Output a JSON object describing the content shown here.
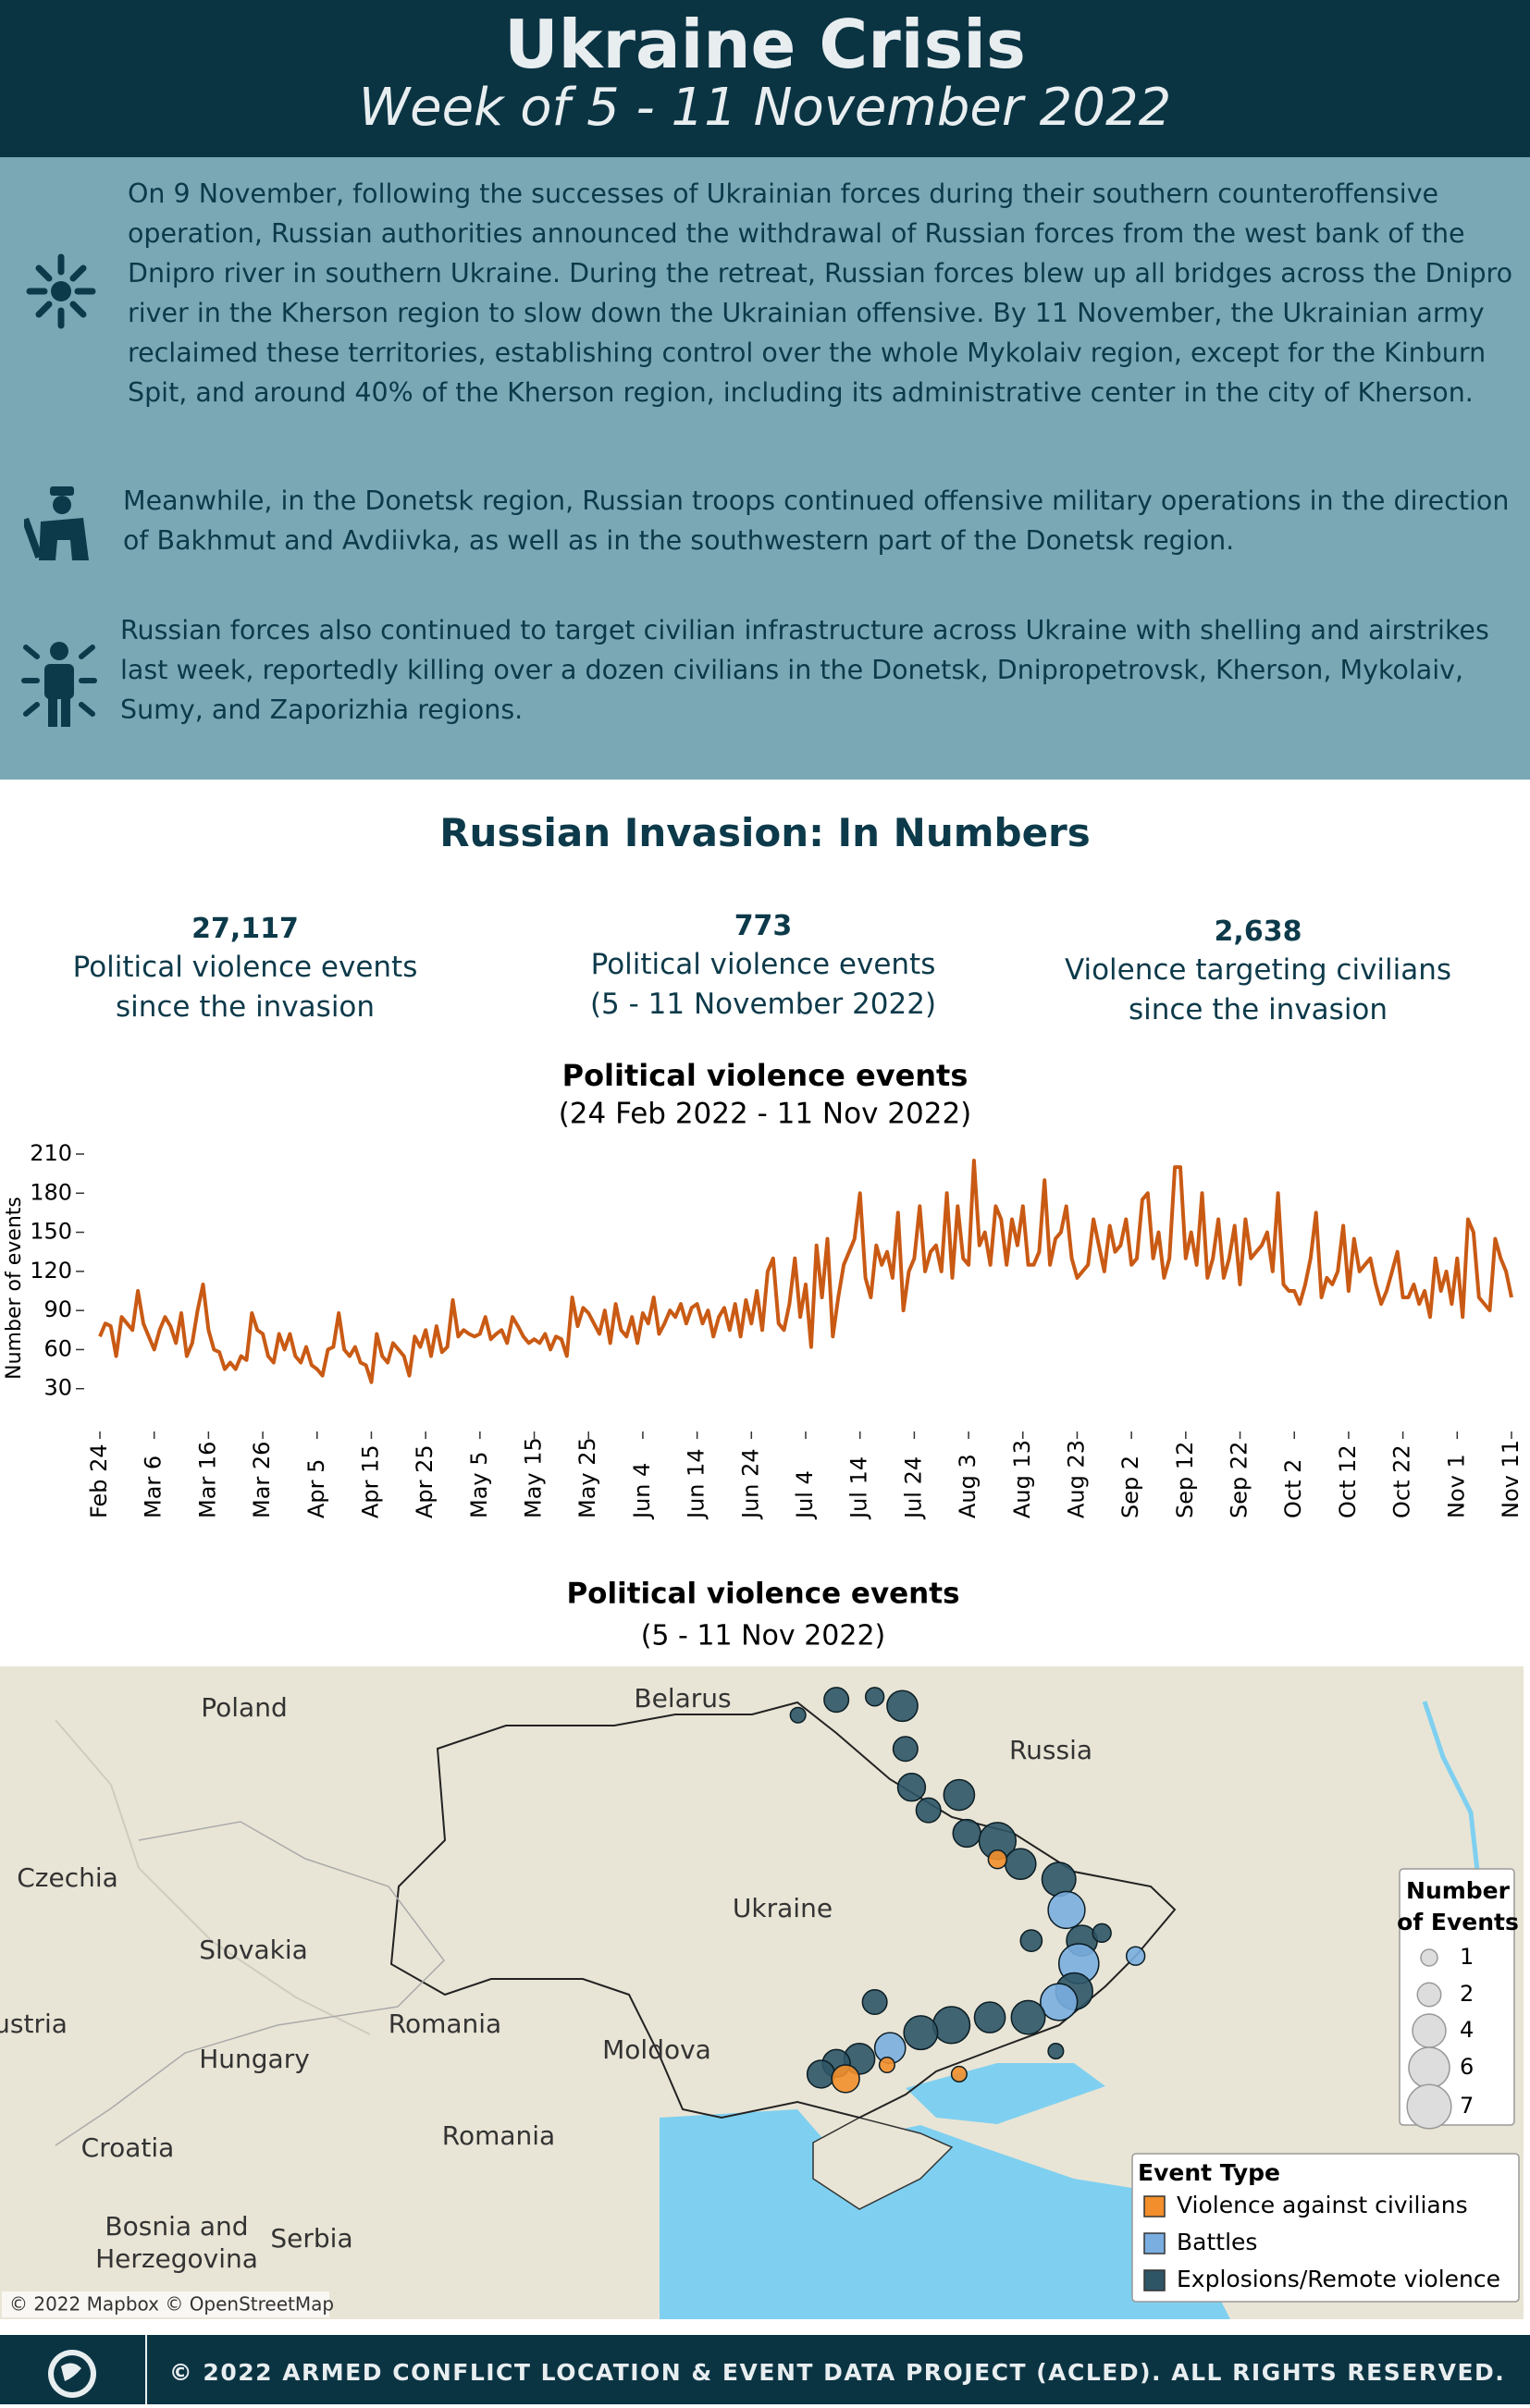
{
  "header": {
    "title": "Ukraine Crisis",
    "subtitle": "Week of 5 - 11 November 2022"
  },
  "paragraphs": [
    "On 9 November, following the successes of Ukrainian forces during their southern counteroffensive operation, Russian authorities announced the withdrawal of Russian forces from the west bank of the Dnipro river in southern Ukraine. During the retreat, Russian forces blew up all bridges across the Dnipro river in the Kherson region to slow down the Ukrainian offensive. By 11 November, the Ukrainian army reclaimed these territories, establishing control over the whole Mykolaiv region, except for the Kinburn Spit, and around 40% of the Kherson region, including its administrative center in the city of Kherson.",
    "Meanwhile, in the Donetsk region, Russian troops continued offensive military operations in the direction of Bakhmut and Avdiivka, as well as in the southwestern part of the Donetsk region.",
    "Russian forces also continued to target civilian infrastructure across Ukraine with shelling and airstrikes last week, reportedly killing over a dozen civilians in the Donetsk, Dnipropetrovsk, Kherson, Mykolaiv, Sumy, and Zaporizhia regions."
  ],
  "numbers": {
    "title": "Russian Invasion: In Numbers",
    "stats": [
      {
        "value": "27,117",
        "lines": [
          "Political violence events",
          "since the invasion"
        ]
      },
      {
        "value": "773",
        "lines": [
          "Political violence events",
          "(5 - 11 November 2022)"
        ]
      },
      {
        "value": "2,638",
        "lines": [
          "Violence targeting civilians",
          "since the invasion"
        ]
      }
    ]
  },
  "chart_data": [
    {
      "type": "line",
      "title": "Political violence events",
      "subtitle": "(24 Feb 2022 - 11 Nov 2022)",
      "y_label": "Number of events",
      "color": "#c95a14",
      "x": [
        "Feb 24",
        "Feb 25",
        "Feb 26",
        "Feb 27",
        "Feb 28",
        "Mar 1",
        "Mar 2",
        "Mar 3",
        "Mar 4",
        "Mar 5",
        "Mar 6",
        "Mar 7",
        "Mar 8",
        "Mar 9",
        "Mar 10",
        "Mar 11",
        "Mar 12",
        "Mar 13",
        "Mar 14",
        "Mar 15",
        "Mar 16",
        "Mar 17",
        "Mar 18",
        "Mar 19",
        "Mar 20",
        "Mar 21",
        "Mar 22",
        "Mar 23",
        "Mar 24",
        "Mar 25",
        "Mar 26",
        "Mar 27",
        "Mar 28",
        "Mar 29",
        "Mar 30",
        "Mar 31",
        "Apr 1",
        "Apr 2",
        "Apr 3",
        "Apr 4",
        "Apr 5",
        "Apr 6",
        "Apr 7",
        "Apr 8",
        "Apr 9",
        "Apr 10",
        "Apr 11",
        "Apr 12",
        "Apr 13",
        "Apr 14",
        "Apr 15",
        "Apr 16",
        "Apr 17",
        "Apr 18",
        "Apr 19",
        "Apr 20",
        "Apr 21",
        "Apr 22",
        "Apr 23",
        "Apr 24",
        "Apr 25",
        "Apr 26",
        "Apr 27",
        "Apr 28",
        "Apr 29",
        "Apr 30",
        "May 1",
        "May 2",
        "May 3",
        "May 4",
        "May 5",
        "May 6",
        "May 7",
        "May 8",
        "May 9",
        "May 10",
        "May 11",
        "May 12",
        "May 13",
        "May 14",
        "May 15",
        "May 16",
        "May 17",
        "May 18",
        "May 19",
        "May 20",
        "May 21",
        "May 22",
        "May 23",
        "May 24",
        "May 25",
        "May 26",
        "May 27",
        "May 28",
        "May 29",
        "May 30",
        "May 31",
        "Jun 1",
        "Jun 2",
        "Jun 3",
        "Jun 4",
        "Jun 5",
        "Jun 6",
        "Jun 7",
        "Jun 8",
        "Jun 9",
        "Jun 10",
        "Jun 11",
        "Jun 12",
        "Jun 13",
        "Jun 14",
        "Jun 15",
        "Jun 16",
        "Jun 17",
        "Jun 18",
        "Jun 19",
        "Jun 20",
        "Jun 21",
        "Jun 22",
        "Jun 23",
        "Jun 24",
        "Jun 25",
        "Jun 26",
        "Jun 27",
        "Jun 28",
        "Jun 29",
        "Jun 30",
        "Jul 1",
        "Jul 2",
        "Jul 3",
        "Jul 4",
        "Jul 5",
        "Jul 6",
        "Jul 7",
        "Jul 8",
        "Jul 9",
        "Jul 10",
        "Jul 11",
        "Jul 12",
        "Jul 13",
        "Jul 14",
        "Jul 15",
        "Jul 16",
        "Jul 17",
        "Jul 18",
        "Jul 19",
        "Jul 20",
        "Jul 21",
        "Jul 22",
        "Jul 23",
        "Jul 24",
        "Jul 25",
        "Jul 26",
        "Jul 27",
        "Jul 28",
        "Jul 29",
        "Jul 30",
        "Jul 31",
        "Aug 1",
        "Aug 2",
        "Aug 3",
        "Aug 4",
        "Aug 5",
        "Aug 6",
        "Aug 7",
        "Aug 8",
        "Aug 9",
        "Aug 10",
        "Aug 11",
        "Aug 12",
        "Aug 13",
        "Aug 14",
        "Aug 15",
        "Aug 16",
        "Aug 17",
        "Aug 18",
        "Aug 19",
        "Aug 20",
        "Aug 21",
        "Aug 22",
        "Aug 23",
        "Aug 24",
        "Aug 25",
        "Aug 26",
        "Aug 27",
        "Aug 28",
        "Aug 29",
        "Aug 30",
        "Aug 31",
        "Sep 1",
        "Sep 2",
        "Sep 3",
        "Sep 4",
        "Sep 5",
        "Sep 6",
        "Sep 7",
        "Sep 8",
        "Sep 9",
        "Sep 10",
        "Sep 11",
        "Sep 12",
        "Sep 13",
        "Sep 14",
        "Sep 15",
        "Sep 16",
        "Sep 17",
        "Sep 18",
        "Sep 19",
        "Sep 20",
        "Sep 21",
        "Sep 22",
        "Sep 23",
        "Sep 24",
        "Sep 25",
        "Sep 26",
        "Sep 27",
        "Sep 28",
        "Sep 29",
        "Sep 30",
        "Oct 1",
        "Oct 2",
        "Oct 3",
        "Oct 4",
        "Oct 5",
        "Oct 6",
        "Oct 7",
        "Oct 8",
        "Oct 9",
        "Oct 10",
        "Oct 11",
        "Oct 12",
        "Oct 13",
        "Oct 14",
        "Oct 15",
        "Oct 16",
        "Oct 17",
        "Oct 18",
        "Oct 19",
        "Oct 20",
        "Oct 21",
        "Oct 22",
        "Oct 23",
        "Oct 24",
        "Oct 25",
        "Oct 26",
        "Oct 27",
        "Oct 28",
        "Oct 29",
        "Oct 30",
        "Oct 31",
        "Nov 1",
        "Nov 2",
        "Nov 3",
        "Nov 4",
        "Nov 5",
        "Nov 6",
        "Nov 7",
        "Nov 8",
        "Nov 9",
        "Nov 10",
        "Nov 11"
      ],
      "values": [
        70,
        80,
        78,
        55,
        85,
        80,
        75,
        105,
        80,
        70,
        60,
        75,
        85,
        78,
        65,
        88,
        55,
        65,
        90,
        110,
        75,
        60,
        58,
        45,
        50,
        45,
        55,
        52,
        88,
        75,
        72,
        55,
        50,
        72,
        60,
        72,
        55,
        50,
        62,
        48,
        45,
        40,
        60,
        62,
        88,
        60,
        55,
        62,
        50,
        48,
        35,
        72,
        55,
        50,
        65,
        60,
        55,
        40,
        70,
        62,
        75,
        55,
        78,
        58,
        62,
        98,
        70,
        75,
        72,
        70,
        72,
        85,
        68,
        72,
        75,
        65,
        85,
        78,
        70,
        65,
        68,
        65,
        72,
        60,
        70,
        68,
        55,
        100,
        78,
        92,
        88,
        80,
        72,
        90,
        65,
        95,
        75,
        70,
        85,
        65,
        88,
        80,
        100,
        72,
        80,
        90,
        85,
        95,
        80,
        92,
        95,
        80,
        90,
        70,
        85,
        92,
        75,
        95,
        70,
        98,
        80,
        105,
        75,
        120,
        130,
        80,
        75,
        95,
        130,
        85,
        110,
        62,
        140,
        100,
        145,
        70,
        100,
        125,
        135,
        145,
        180,
        115,
        100,
        140,
        125,
        135,
        115,
        165,
        90,
        120,
        130,
        170,
        120,
        135,
        140,
        120,
        180,
        115,
        170,
        130,
        125,
        205,
        140,
        150,
        125,
        170,
        160,
        125,
        160,
        140,
        170,
        125,
        125,
        135,
        190,
        125,
        145,
        150,
        170,
        130,
        115,
        120,
        125,
        160,
        140,
        120,
        155,
        135,
        140,
        160,
        125,
        130,
        175,
        180,
        130,
        150,
        115,
        130,
        200,
        200,
        130,
        150,
        125,
        180,
        115,
        130,
        160,
        115,
        130,
        155,
        110,
        160,
        130,
        135,
        140,
        150,
        120,
        180,
        110,
        105,
        105,
        95,
        110,
        130,
        165,
        100,
        115,
        110,
        120,
        155,
        105,
        145,
        120,
        125,
        130,
        110,
        95,
        105,
        120,
        135,
        100,
        100,
        110,
        95,
        105,
        85,
        130,
        105,
        120,
        95,
        130,
        85,
        160,
        150,
        100,
        95,
        90,
        145,
        130,
        120,
        100
      ],
      "xticks": [
        "Feb 24",
        "Mar 6",
        "Mar 16",
        "Mar 26",
        "Apr 5",
        "Apr 15",
        "Apr 25",
        "May 5",
        "May 15",
        "May 25",
        "Jun 4",
        "Jun 14",
        "Jun 24",
        "Jul 4",
        "Jul 14",
        "Jul 24",
        "Aug 3",
        "Aug 13",
        "Aug 23",
        "Sep 2",
        "Sep 12",
        "Sep 22",
        "Oct 2",
        "Oct 12",
        "Oct 22",
        "Nov 1",
        "Nov 11"
      ],
      "ylim": [
        0,
        210
      ],
      "yticks": [
        30,
        60,
        90,
        120,
        150,
        180,
        210
      ]
    },
    {
      "type": "bubble_map",
      "title": "Political violence events",
      "subtitle": "(5 - 11 Nov 2022)",
      "map_labels": [
        "Poland",
        "Belarus",
        "Russia",
        "Czechia",
        "Ukraine",
        "Slovakia",
        "ustria",
        "Romania",
        "Moldova",
        "Hungary",
        "Romania",
        "Croatia",
        "Bosnia and",
        "Herzegovina",
        "Serbia"
      ],
      "attribution": "© 2022 Mapbox © OpenStreetMap",
      "size_legend": {
        "title_lines": [
          "Number",
          "of Events"
        ],
        "values": [
          1,
          2,
          4,
          6,
          7
        ]
      },
      "legend_title": "Event Type",
      "event_types": [
        {
          "name": "Violence against civilians",
          "color": "#f28e2b"
        },
        {
          "name": "Battles",
          "color": "#7aaee0"
        },
        {
          "name": "Explosions/Remote violence",
          "color": "#2e5566"
        }
      ]
    }
  ],
  "footer": {
    "text": "© 2022 ARMED CONFLICT LOCATION & EVENT DATA PROJECT (ACLED). ALL RIGHTS RESERVED."
  }
}
